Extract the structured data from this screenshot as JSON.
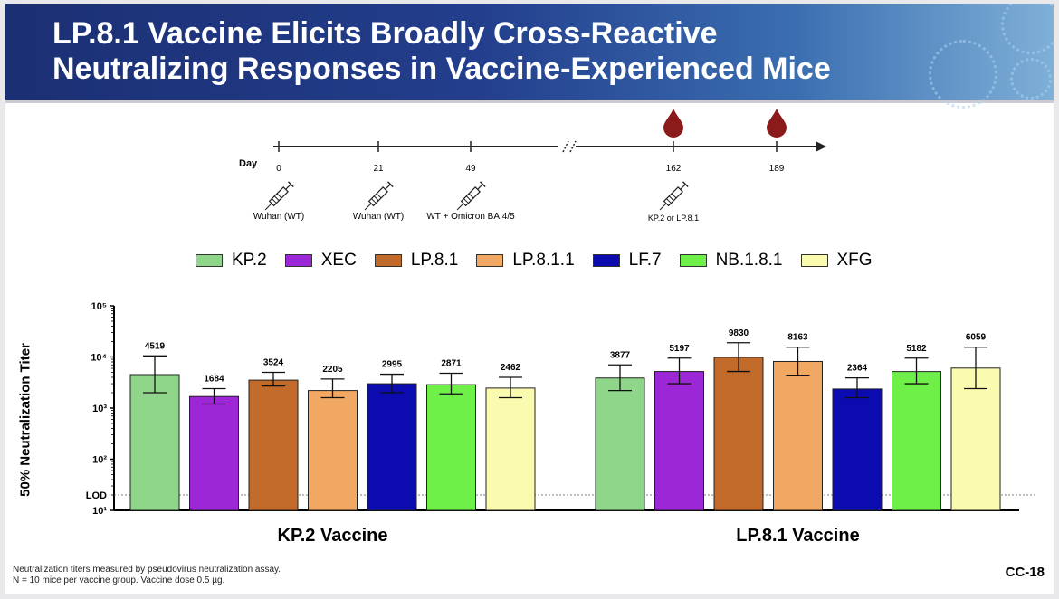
{
  "header": {
    "title_line1": "LP.8.1 Vaccine Elicits Broadly Cross-Reactive",
    "title_line2": "Neutralizing Responses in Vaccine-Experienced Mice"
  },
  "timeline": {
    "day_label": "Day",
    "events": [
      {
        "day": "0",
        "label": "Wuhan (WT)",
        "syringe": true,
        "blood_drop": false
      },
      {
        "day": "21",
        "label": "Wuhan (WT)",
        "syringe": true,
        "blood_drop": false
      },
      {
        "day": "49",
        "label": "WT + Omicron BA.4/5",
        "syringe": true,
        "blood_drop": false
      },
      {
        "day": "162",
        "label": "KP.2 or LP.8.1",
        "syringe": true,
        "blood_drop": true
      },
      {
        "day": "189",
        "label": "",
        "syringe": false,
        "blood_drop": true
      }
    ],
    "colors": {
      "line": "#222222",
      "blood": "#8b1a1a"
    }
  },
  "chart_data": {
    "type": "bar",
    "ylabel": "50% Neutralization Titer",
    "yscale": "log",
    "ylim": [
      10,
      100000
    ],
    "yticks": [
      {
        "value": 100000,
        "label": "10⁵"
      },
      {
        "value": 10000,
        "label": "10⁴"
      },
      {
        "value": 1000,
        "label": "10³"
      },
      {
        "value": 100,
        "label": "10²"
      },
      {
        "value": 10,
        "label": "10¹"
      }
    ],
    "lod": {
      "label": "LOD",
      "value": 20
    },
    "legend_position": "top",
    "groups": [
      "KP.2 Vaccine",
      "LP.8.1 Vaccine"
    ],
    "series": [
      {
        "name": "KP.2",
        "color": "#8fd68a",
        "values": [
          4519,
          3877
        ],
        "err_low": [
          2000,
          2200
        ],
        "err_high": [
          10500,
          7000
        ]
      },
      {
        "name": "XEC",
        "color": "#9b27d6",
        "values": [
          1684,
          5197
        ],
        "err_low": [
          1200,
          3000
        ],
        "err_high": [
          2400,
          9500
        ]
      },
      {
        "name": "LP.8.1",
        "color": "#c26a2a",
        "values": [
          3524,
          9830
        ],
        "err_low": [
          2700,
          5200
        ],
        "err_high": [
          5000,
          19000
        ]
      },
      {
        "name": "LP.8.1.1",
        "color": "#f0a862",
        "values": [
          2205,
          8163
        ],
        "err_low": [
          1600,
          4400
        ],
        "err_high": [
          3700,
          15500
        ]
      },
      {
        "name": "LF.7",
        "color": "#0b0bb0",
        "values": [
          2995,
          2364
        ],
        "err_low": [
          2000,
          1600
        ],
        "err_high": [
          4600,
          3900
        ]
      },
      {
        "name": "NB.1.8.1",
        "color": "#6ff048",
        "values": [
          2871,
          5182
        ],
        "err_low": [
          1900,
          3000
        ],
        "err_high": [
          4800,
          9500
        ]
      },
      {
        "name": "XFG",
        "color": "#fbfbb0",
        "values": [
          2462,
          6059
        ],
        "err_low": [
          1600,
          2400
        ],
        "err_high": [
          4000,
          15500
        ]
      }
    ]
  },
  "footer": {
    "note_line1": "Neutralization titers measured by pseudovirus neutralization assay.",
    "note_line2": "N = 10 mice per vaccine group. Vaccine dose 0.5 µg.",
    "slide_number": "CC-18"
  }
}
